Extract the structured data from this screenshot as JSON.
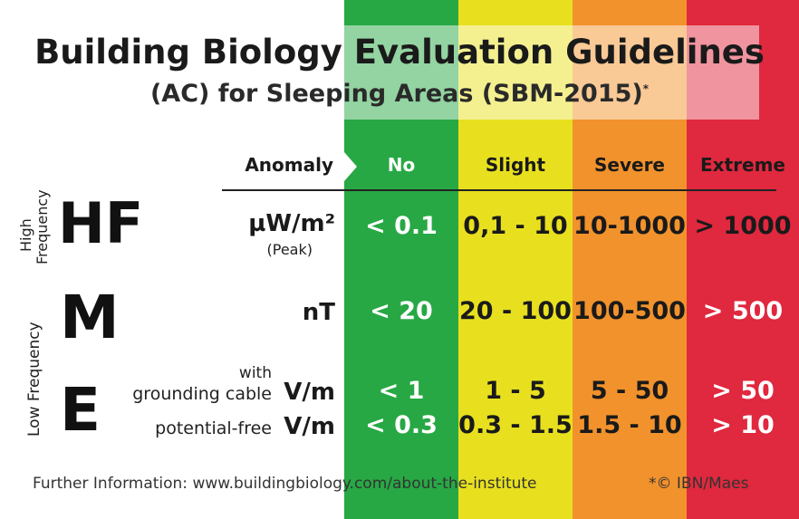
{
  "title": "Building Biology Evaluation Guidelines",
  "subtitle": "(AC) for Sleeping Areas (SBM-2015)",
  "subtitle_mark": "*",
  "header": {
    "anomaly": "Anomaly",
    "no": "No",
    "slight": "Slight",
    "severe": "Severe",
    "extreme": "Extreme"
  },
  "side_labels": {
    "high": "High",
    "frequency": "Frequency",
    "low_frequency": "Low   Frequency"
  },
  "rows": {
    "hf": {
      "code": "HF",
      "unit": "µW/m²",
      "note": "(Peak)",
      "values": [
        "< 0.1",
        "0,1 - 10",
        "10-1000",
        "> 1000"
      ]
    },
    "m": {
      "code": "M",
      "unit": "nT",
      "values": [
        "< 20",
        "20 - 100",
        "100-500",
        "> 500"
      ]
    },
    "e": {
      "code": "E",
      "grounded": {
        "note_top": "with",
        "note": "grounding cable",
        "unit": "V/m",
        "values": [
          "< 1",
          "1 - 5",
          "5 - 50",
          "> 50"
        ]
      },
      "free": {
        "note": "potential-free",
        "unit": "V/m",
        "values": [
          "< 0.3",
          "0.3 - 1.5",
          "1.5 - 10",
          "> 10"
        ]
      }
    }
  },
  "footer": "Further Information:  www.buildingbiology.com/about-the-institute",
  "credit": "*© IBN/Maes",
  "colors": {
    "no": "#27a844",
    "slight": "#e8e01f",
    "severe": "#f2922c",
    "extreme": "#e0283e"
  }
}
